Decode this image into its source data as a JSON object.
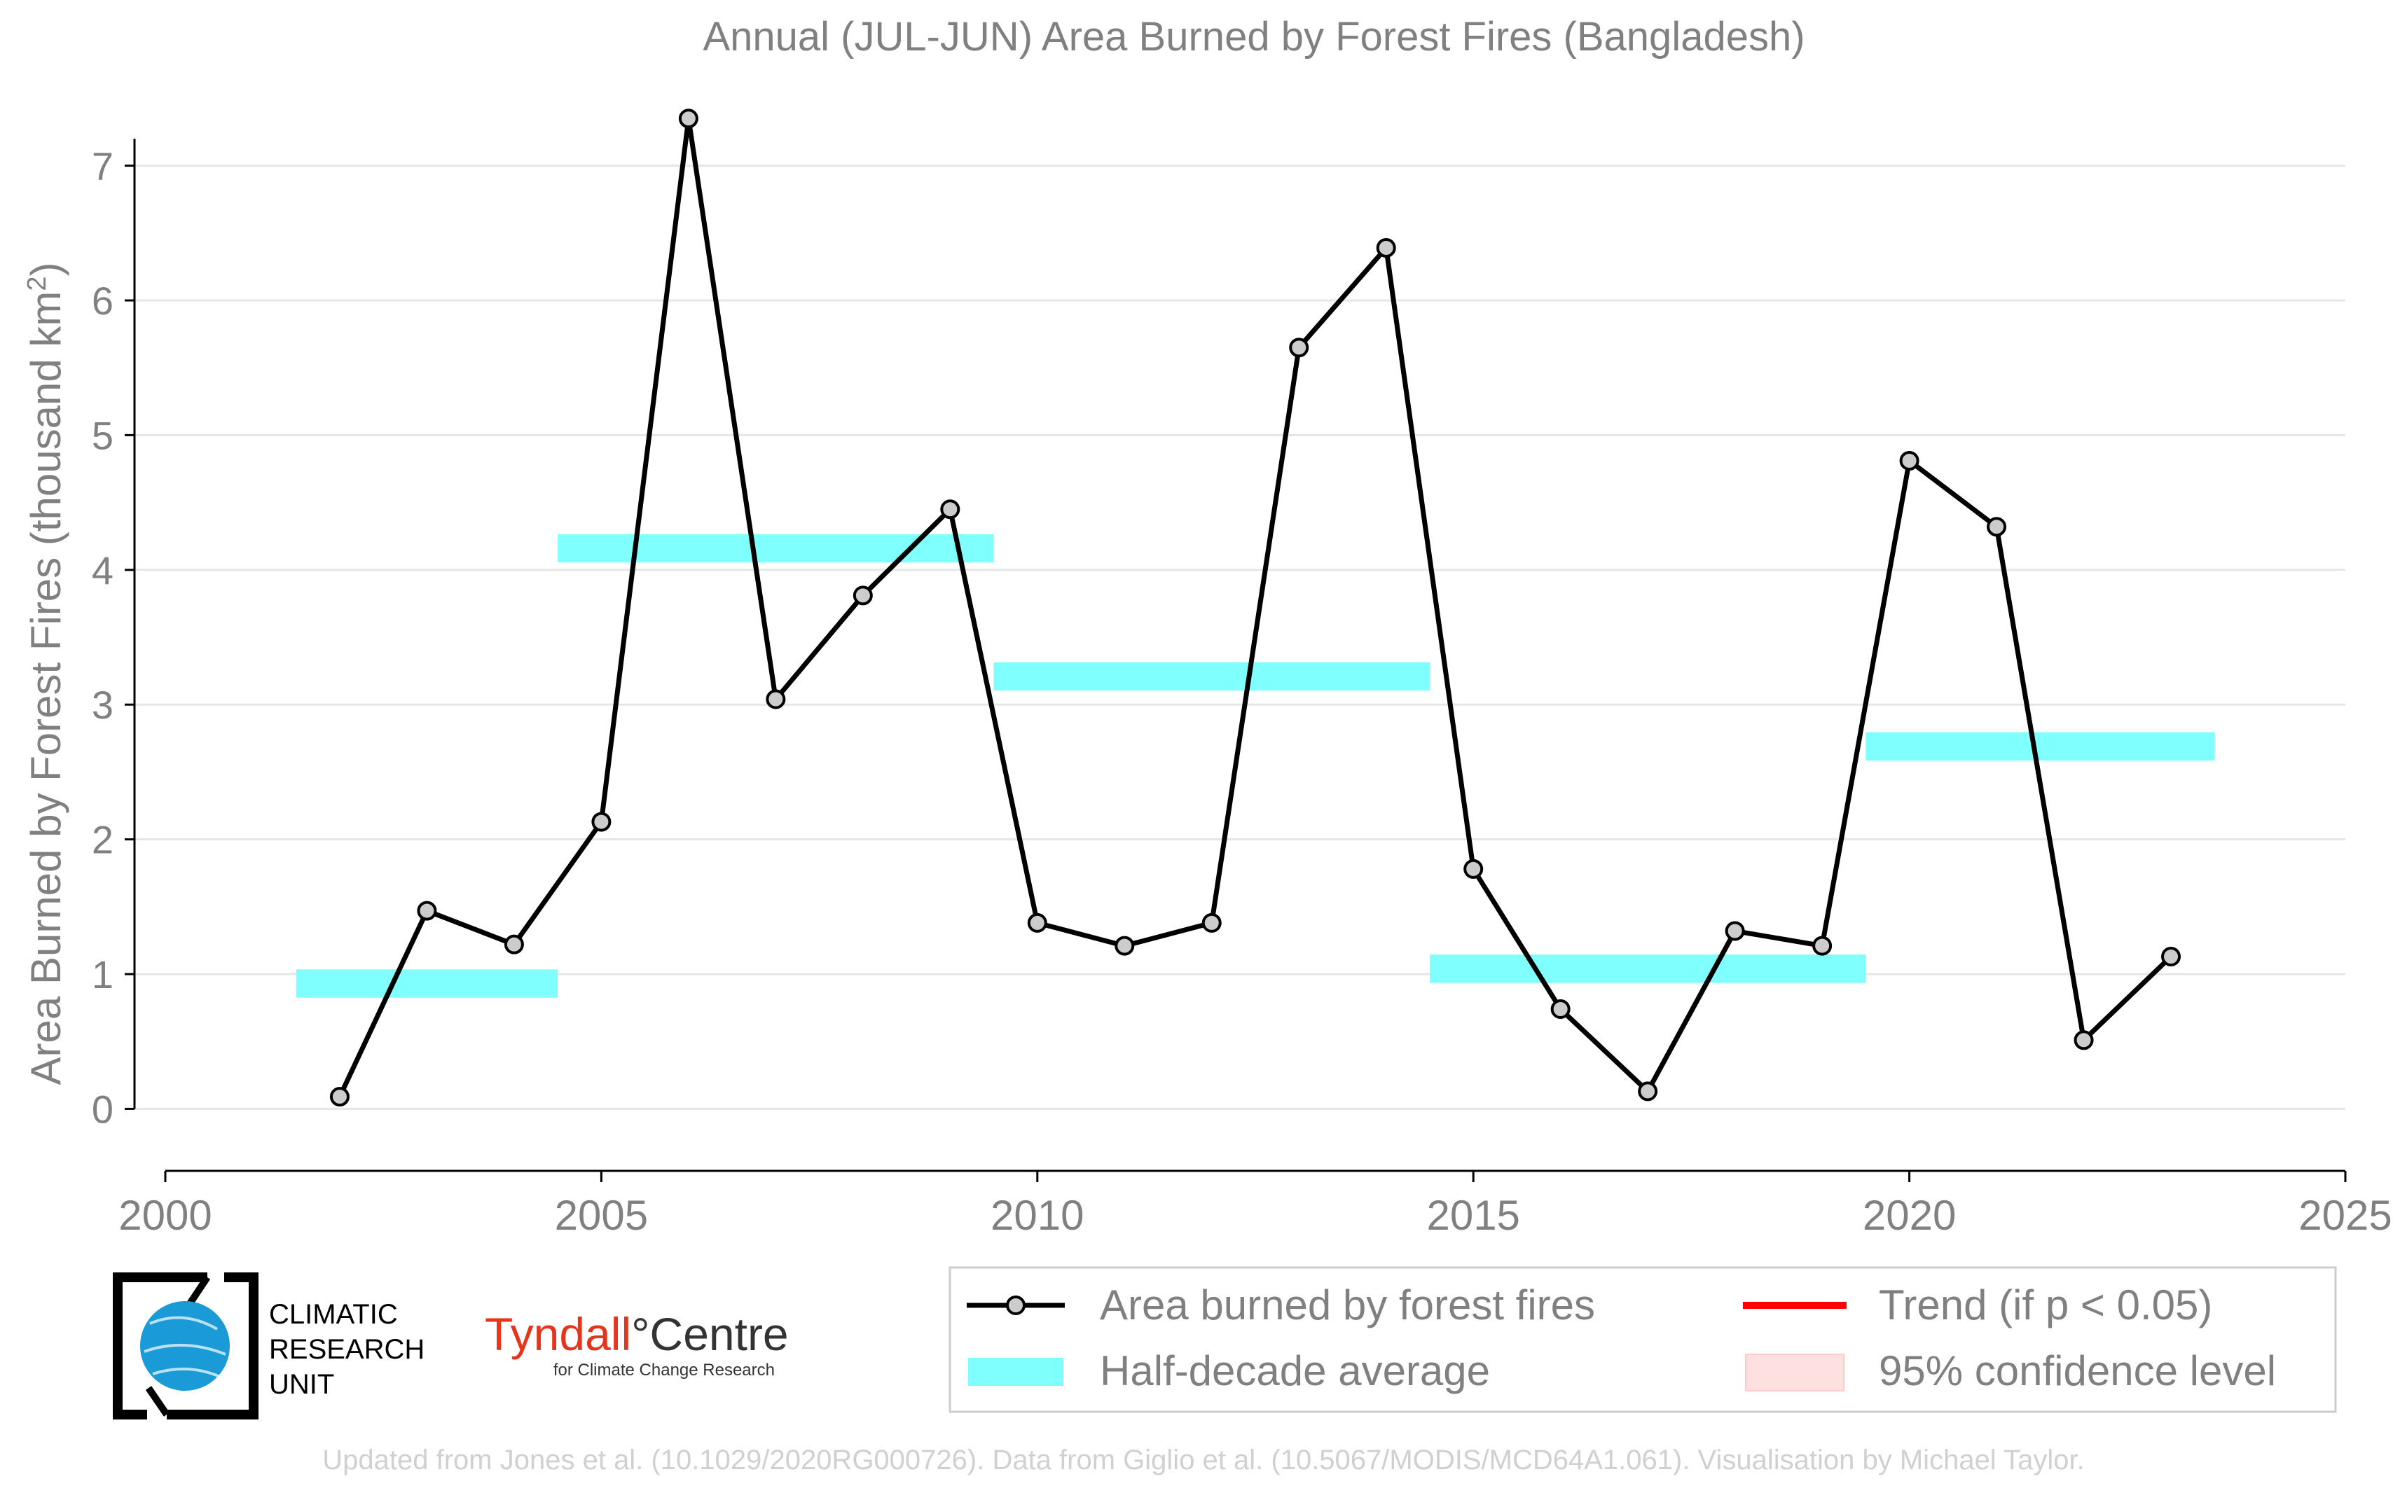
{
  "chart_data": {
    "type": "line",
    "title": "Annual (JUL-JUN) Area Burned by Forest Fires (Bangladesh)",
    "ylabel": "Area Burned by Forest Fires (thousand km",
    "ylabel_sup": "2",
    "ylabel_close": ")",
    "xlim": [
      2000,
      2025
    ],
    "ylim": [
      -0.45,
      7.45
    ],
    "x_ticks": [
      2000,
      2005,
      2010,
      2015,
      2020,
      2025
    ],
    "y_ticks": [
      0,
      1,
      2,
      3,
      4,
      5,
      6,
      7
    ],
    "grid": "horizontal",
    "legend_position": "bottom-right",
    "series": [
      {
        "name": "Area burned by forest fires",
        "color": "#000000",
        "marker_fill": "#cccccc",
        "x": [
          2002,
          2003,
          2004,
          2005,
          2006,
          2007,
          2008,
          2009,
          2010,
          2011,
          2012,
          2013,
          2014,
          2015,
          2016,
          2017,
          2018,
          2019,
          2020,
          2021,
          2022,
          2023
        ],
        "y": [
          0.09,
          1.47,
          1.22,
          2.13,
          7.35,
          3.04,
          3.81,
          4.45,
          1.38,
          1.21,
          1.38,
          5.65,
          6.39,
          1.78,
          0.74,
          0.13,
          1.32,
          1.21,
          4.81,
          4.32,
          0.51,
          1.13
        ]
      }
    ],
    "half_decade_averages": {
      "name": "Half-decade average",
      "color": "#80ffff",
      "segments": [
        {
          "x0": 2001.5,
          "x1": 2004.5,
          "y": 0.93
        },
        {
          "x0": 2004.5,
          "x1": 2009.5,
          "y": 4.16
        },
        {
          "x0": 2009.5,
          "x1": 2014.5,
          "y": 3.21
        },
        {
          "x0": 2014.5,
          "x1": 2019.5,
          "y": 1.04
        },
        {
          "x0": 2019.5,
          "x1": 2023.5,
          "y": 2.69
        }
      ]
    },
    "legend": [
      {
        "label": "Area burned by forest fires",
        "kind": "line-marker",
        "color": "#000000"
      },
      {
        "label": "Half-decade average",
        "kind": "band",
        "color": "#80ffff"
      },
      {
        "label": "Trend (if p < 0.05)",
        "kind": "line",
        "color": "#ff0000"
      },
      {
        "label": "95% confidence level",
        "kind": "patch",
        "color": "#ffe0e0"
      }
    ]
  },
  "logos": {
    "cru": {
      "line1": "CLIMATIC",
      "line2": "RESEARCH",
      "line3": "UNIT",
      "globe_color": "#1a9ad6"
    },
    "tyndall": {
      "name": "Tyndall",
      "degree": "°",
      "suffix": "Centre",
      "tagline": "for Climate Change Research",
      "color": "#e8341c"
    }
  },
  "credit": "Updated from Jones et al. (10.1029/2020RG000726). Data from Giglio et al. (10.5067/MODIS/MCD64A1.061). Visualisation by Michael Taylor."
}
